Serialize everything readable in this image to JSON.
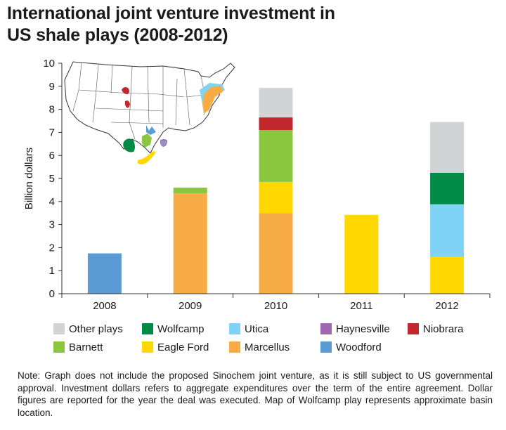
{
  "title": {
    "line1": "International joint venture investment in",
    "line2": "US shale plays (2008-2012)"
  },
  "chart_data": {
    "type": "bar",
    "stacked": true,
    "categories": [
      "2008",
      "2009",
      "2010",
      "2011",
      "2012"
    ],
    "ylabel": "Billion dollars",
    "xlabel": "",
    "ylim": [
      0,
      10
    ],
    "yticks": [
      0,
      1,
      2,
      3,
      4,
      5,
      6,
      7,
      8,
      9,
      10
    ],
    "grid": false,
    "series": [
      {
        "name": "Woodford",
        "color": "#5a9bd5",
        "values": [
          1.75,
          0,
          0,
          0,
          0
        ]
      },
      {
        "name": "Marcellus",
        "color": "#f7ac45",
        "values": [
          0,
          4.35,
          3.5,
          0,
          0
        ]
      },
      {
        "name": "Eagle Ford",
        "color": "#ffd800",
        "values": [
          0,
          0,
          1.35,
          3.42,
          1.6
        ]
      },
      {
        "name": "Barnett",
        "color": "#8cc63f",
        "values": [
          0,
          0.25,
          2.25,
          0,
          0
        ]
      },
      {
        "name": "Niobrara",
        "color": "#c1272d",
        "values": [
          0,
          0,
          0.55,
          0,
          0
        ]
      },
      {
        "name": "Haynesville",
        "color": "#a066b0",
        "values": [
          0,
          0,
          0,
          0,
          0
        ]
      },
      {
        "name": "Utica",
        "color": "#7fd3f7",
        "values": [
          0,
          0,
          0,
          0,
          2.28
        ]
      },
      {
        "name": "Wolfcamp",
        "color": "#008a45",
        "values": [
          0,
          0,
          0,
          0,
          1.37
        ]
      },
      {
        "name": "Other plays",
        "color": "#d1d3d4",
        "values": [
          0,
          0,
          1.28,
          0,
          2.2
        ]
      }
    ],
    "legend_placement": "bottom",
    "legend_order": [
      "Other plays",
      "Wolfcamp",
      "Utica",
      "Haynesville",
      "Niobrara",
      "Barnett",
      "Eagle Ford",
      "Marcellus",
      "Woodford"
    ],
    "inset_map": {
      "description_icon": "us-map-icon",
      "play_colors": [
        "#c1272d",
        "#7fd3f7",
        "#f7ac45",
        "#008a45",
        "#8cc63f",
        "#ffd800",
        "#5a9bd5",
        "#a066b0"
      ]
    }
  },
  "note": "Note: Graph does not include the proposed Sinochem joint venture, as it is still subject to US governmental approval. Investment dollars refers to aggregate expenditures over the term of the entire agreement. Dollar figures are reported for the year the deal was executed. Map of Wolfcamp play represents approximate basin location."
}
